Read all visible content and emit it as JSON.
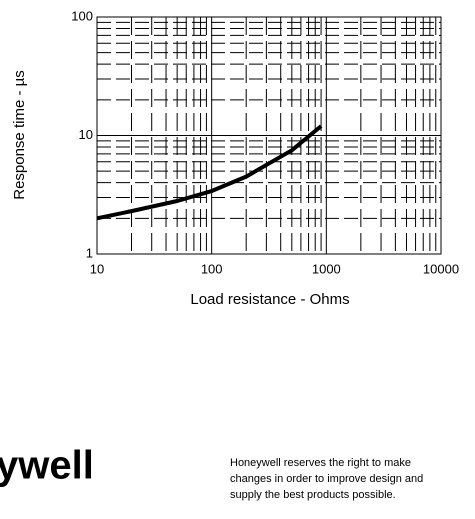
{
  "chart_data": {
    "type": "line",
    "xlabel": "Load resistance - Ohms",
    "ylabel": "Response time - µs",
    "x": [
      10,
      20,
      50,
      100,
      200,
      500,
      900
    ],
    "series": [
      {
        "name": null,
        "color": "#000000",
        "values": [
          2.0,
          2.3,
          2.8,
          3.4,
          4.5,
          7.5,
          12
        ]
      }
    ],
    "xlim": [
      10,
      10000
    ],
    "ylim": [
      1,
      100
    ],
    "xscale": "log",
    "yscale": "log",
    "xticks": [
      10,
      100,
      1000,
      10000
    ],
    "yticks": [
      1,
      10,
      100
    ],
    "grid": true,
    "minor_grid": true
  },
  "footer": {
    "logo": "ywell",
    "notice": [
      "Honeywell reserves the right to make",
      "changes in order to improve design and",
      "supply the best products possible."
    ]
  }
}
